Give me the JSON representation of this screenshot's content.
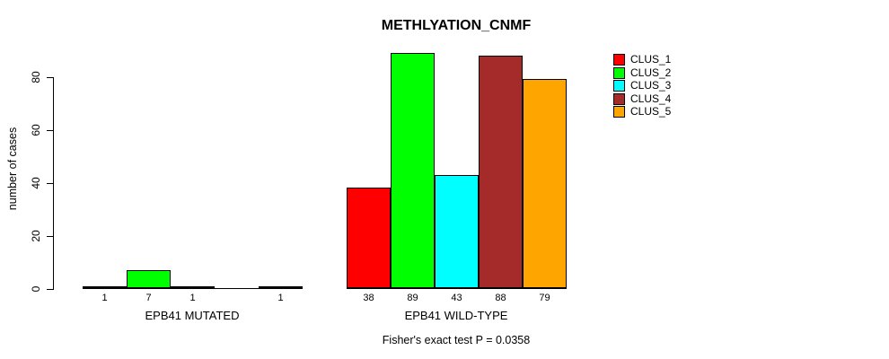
{
  "chart_data": {
    "type": "bar",
    "title": "METHLYATION_CNMF",
    "ylabel": "number of cases",
    "xlabel": "",
    "footer": "Fisher's exact test P = 0.0358",
    "yticks": [
      0,
      20,
      40,
      60,
      80
    ],
    "ylim": [
      0,
      90
    ],
    "grid": false,
    "legend_position": "right",
    "series": [
      {
        "name": "CLUS_1",
        "color": "#FF0000"
      },
      {
        "name": "CLUS_2",
        "color": "#00FF00"
      },
      {
        "name": "CLUS_3",
        "color": "#00FFFF"
      },
      {
        "name": "CLUS_4",
        "color": "#A52A2A"
      },
      {
        "name": "CLUS_5",
        "color": "#FFA500"
      }
    ],
    "groups": [
      {
        "label": "EPB41 MUTATED",
        "values": [
          1,
          7,
          1,
          0,
          1
        ]
      },
      {
        "label": "EPB41 WILD-TYPE",
        "values": [
          38,
          89,
          43,
          88,
          79
        ]
      }
    ]
  }
}
